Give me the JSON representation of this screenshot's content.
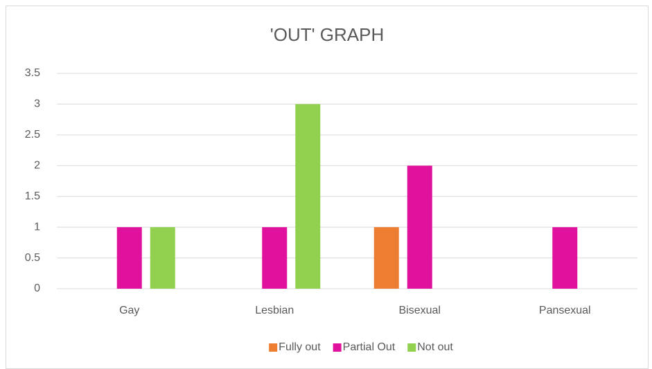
{
  "chart_data": {
    "type": "bar",
    "title": "'OUT' GRAPH",
    "categories": [
      "Gay",
      "Lesbian",
      "Bisexual",
      "Pansexual"
    ],
    "series": [
      {
        "name": "Fully out",
        "color": "#ed7d31",
        "values": [
          0,
          0,
          1,
          0
        ]
      },
      {
        "name": "Partial Out",
        "color": "#e0119d",
        "values": [
          1,
          1,
          2,
          1
        ]
      },
      {
        "name": "Not out",
        "color": "#92d050",
        "values": [
          1,
          3,
          0,
          0
        ]
      }
    ],
    "ylim": [
      0,
      3.5
    ],
    "yticks": [
      0,
      0.5,
      1,
      1.5,
      2,
      2.5,
      3,
      3.5
    ],
    "grid": true,
    "legend": "bottom"
  }
}
